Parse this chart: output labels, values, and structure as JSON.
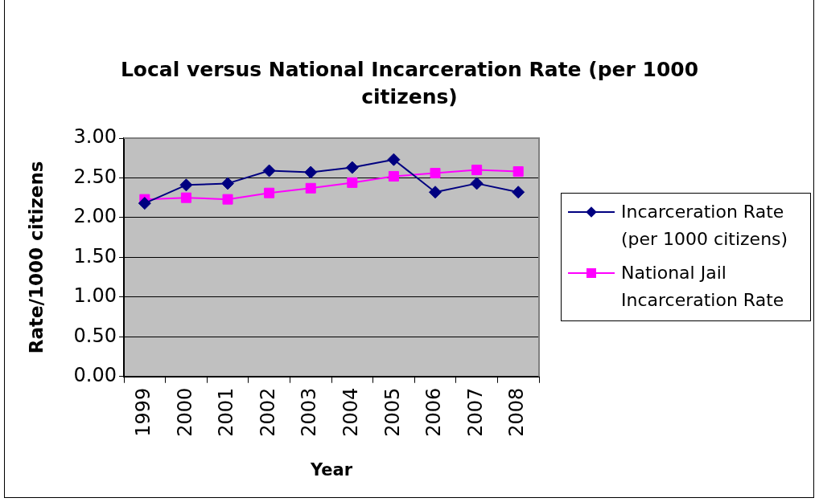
{
  "chart_data": {
    "type": "line",
    "title": "Local versus National Incarceration Rate (per 1000 citizens)",
    "xlabel": "Year",
    "ylabel": "Rate/1000 citizens",
    "categories": [
      "1999",
      "2000",
      "2001",
      "2002",
      "2003",
      "2004",
      "2005",
      "2006",
      "2007",
      "2008"
    ],
    "series": [
      {
        "name": "Incarceration Rate (per 1000 citizens)",
        "color": "#000080",
        "marker": "diamond",
        "values": [
          2.18,
          2.41,
          2.43,
          2.59,
          2.57,
          2.63,
          2.73,
          2.32,
          2.43,
          2.32
        ]
      },
      {
        "name": "National Jail Incarceration Rate",
        "color": "#ff00ff",
        "marker": "square",
        "values": [
          2.23,
          2.25,
          2.23,
          2.31,
          2.37,
          2.44,
          2.52,
          2.56,
          2.6,
          2.58
        ]
      }
    ],
    "ylim": [
      0,
      3
    ],
    "yticks": [
      {
        "value": 0,
        "label": "0.00"
      },
      {
        "value": 0.5,
        "label": "0.50"
      },
      {
        "value": 1,
        "label": "1.00"
      },
      {
        "value": 1.5,
        "label": "1.50"
      },
      {
        "value": 2,
        "label": "2.00"
      },
      {
        "value": 2.5,
        "label": "2.50"
      },
      {
        "value": 3,
        "label": "3.00"
      }
    ],
    "grid": "y",
    "legend": "right",
    "line_style": "solid"
  }
}
